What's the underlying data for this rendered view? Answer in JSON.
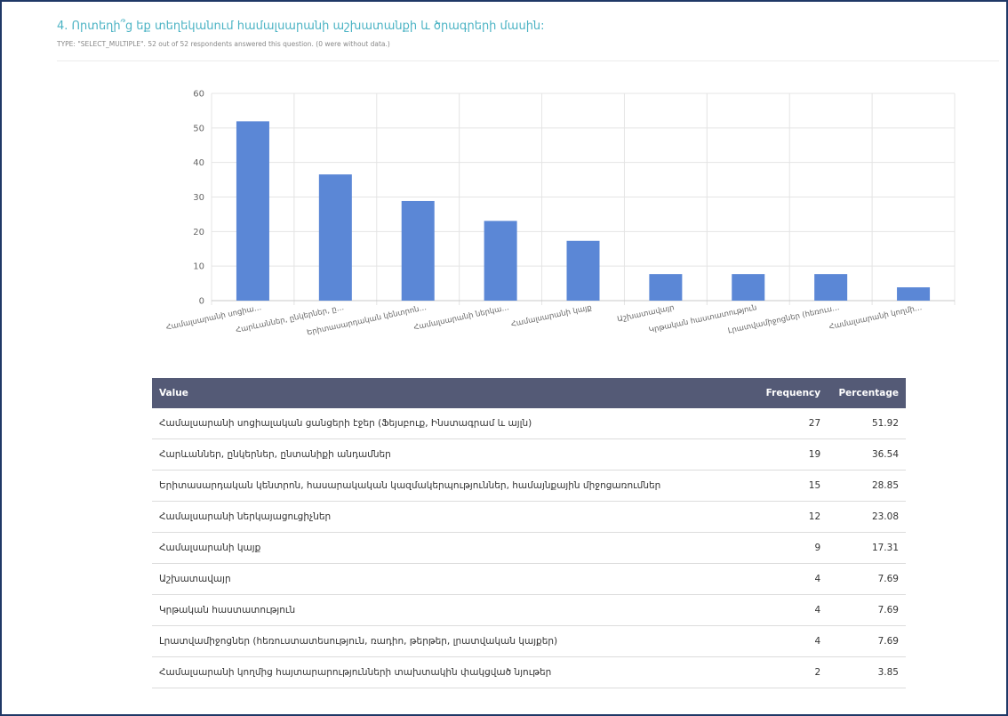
{
  "question": {
    "title": "4. Որտեղի՞ց եք տեղեկանում համալսարանի աշխատանքի և ծրագրերի մասին:",
    "meta": "TYPE: \"SELECT_MULTIPLE\". 52 out of 52 respondents answered this question. (0 were without data.)"
  },
  "colors": {
    "bar": "#5b87d6",
    "header_bg": "#545a76",
    "title": "#4bb3c4"
  },
  "chart_data": {
    "type": "bar",
    "categories": [
      "Համալսարանի սոցիա…",
      "Հարևաններ, ընկերներ, ը…",
      "Երիտասարդական կենտրոն…",
      "Համալսարանի ներկա…",
      "Համալսարանի կայք",
      "Աշխատավայր",
      "Կրթական հաստատություն",
      "Լրատվամիջոցներ (հեռուս…",
      "Համալսարանի կողմի…"
    ],
    "values": [
      51.92,
      36.54,
      28.85,
      23.08,
      17.31,
      7.69,
      7.69,
      7.69,
      3.85
    ],
    "ylim": [
      0,
      60
    ],
    "yticks": [
      "0",
      "10",
      "20",
      "30",
      "40",
      "50",
      "60"
    ],
    "grid": true
  },
  "table": {
    "headers": {
      "value": "Value",
      "frequency": "Frequency",
      "percentage": "Percentage"
    },
    "rows": [
      {
        "value": "Համալսարանի սոցիալական ցանցերի էջեր (Ֆեյսբուք, Ինստագրամ և այլն)",
        "frequency": "27",
        "percentage": "51.92"
      },
      {
        "value": "Հարևաններ, ընկերներ, ընտանիքի անդամներ",
        "frequency": "19",
        "percentage": "36.54"
      },
      {
        "value": "Երիտասարդական կենտրոն, հասարակական կազմակերպություններ, համայնքային միջոցառումներ",
        "frequency": "15",
        "percentage": "28.85"
      },
      {
        "value": "Համալսարանի ներկայացուցիչներ",
        "frequency": "12",
        "percentage": "23.08"
      },
      {
        "value": "Համալսարանի կայք",
        "frequency": "9",
        "percentage": "17.31"
      },
      {
        "value": "Աշխատավայր",
        "frequency": "4",
        "percentage": "7.69"
      },
      {
        "value": "Կրթական հաստատություն",
        "frequency": "4",
        "percentage": "7.69"
      },
      {
        "value": "Լրատվամիջոցներ (հեռուստատեսություն, ռադիո, թերթեր, լրատվական կայքեր)",
        "frequency": "4",
        "percentage": "7.69"
      },
      {
        "value": "Համալսարանի կողմից հայտարարությունների տախտակին փակցված նյութեր",
        "frequency": "2",
        "percentage": "3.85"
      }
    ]
  }
}
